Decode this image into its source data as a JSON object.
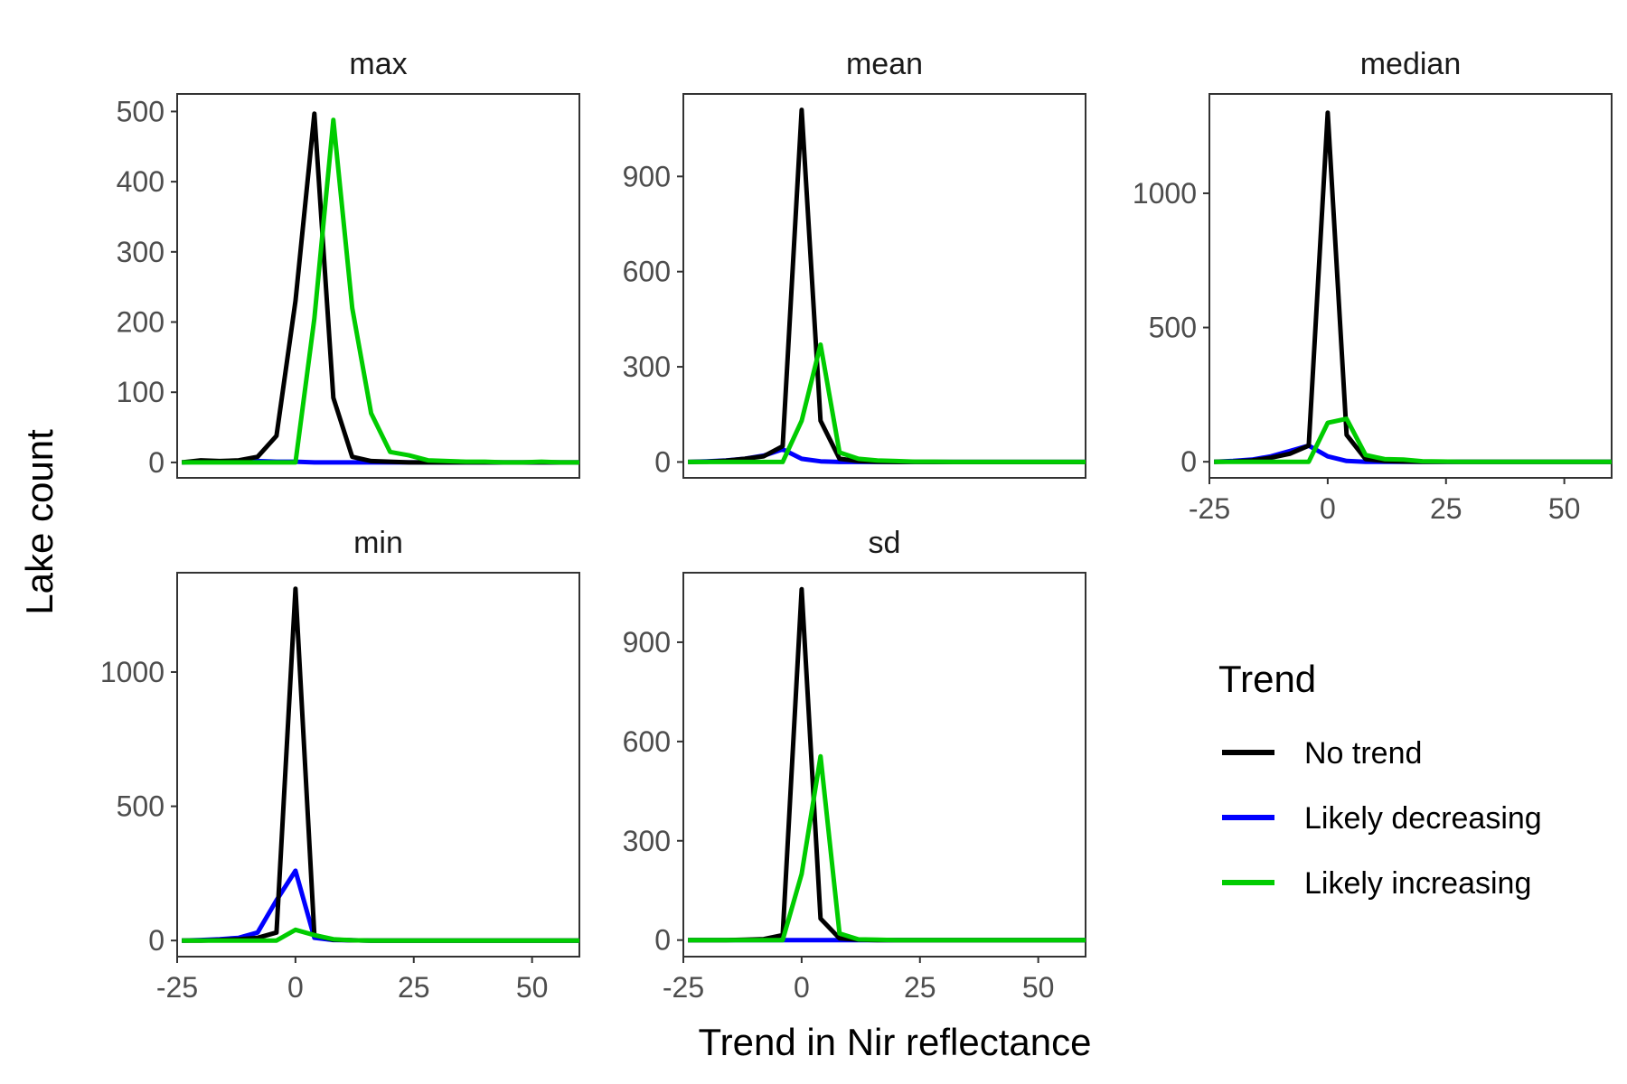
{
  "chart_data": {
    "type": "line",
    "ylabel": "Lake count",
    "xlabel": "Trend in Nir reflectance",
    "xlim": [
      -25,
      60
    ],
    "x_ticks": [
      -25,
      0,
      25,
      50
    ],
    "legend": {
      "title": "Trend",
      "placement": "right",
      "entries": [
        {
          "label": "No trend",
          "color": "#000000"
        },
        {
          "label": "Likely decreasing",
          "color": "#0000ff"
        },
        {
          "label": "Likely increasing",
          "color": "#00cc00"
        }
      ]
    },
    "x": [
      -24,
      -20,
      -16,
      -12,
      -8,
      -4,
      0,
      4,
      8,
      12,
      16,
      20,
      24,
      28,
      32,
      36,
      40,
      44,
      48,
      52,
      56,
      60
    ],
    "panels": [
      {
        "title": "max",
        "ylim": [
          -22,
          525
        ],
        "y_ticks": [
          0,
          100,
          200,
          300,
          400,
          500
        ],
        "series": [
          {
            "name": "No trend",
            "values": [
              0,
              3,
              2,
              3,
              8,
              38,
              230,
              497,
              92,
              8,
              2,
              1,
              0,
              0,
              0,
              0,
              0,
              0,
              0,
              0,
              0,
              0
            ]
          },
          {
            "name": "Likely decreasing",
            "values": [
              0,
              1,
              1,
              2,
              2,
              1,
              1,
              0,
              0,
              0,
              0,
              0,
              0,
              0,
              0,
              0,
              0,
              0,
              0,
              0,
              0,
              0
            ]
          },
          {
            "name": "Likely increasing",
            "values": [
              0,
              0,
              0,
              0,
              0,
              0,
              0,
              205,
              488,
              220,
              70,
              15,
              10,
              3,
              2,
              1,
              1,
              0,
              0,
              1,
              0,
              0
            ]
          }
        ]
      },
      {
        "title": "mean",
        "ylim": [
          -50,
          1160
        ],
        "y_ticks": [
          0,
          300,
          600,
          900
        ],
        "series": [
          {
            "name": "No trend",
            "values": [
              0,
              1,
              4,
              10,
              18,
              50,
              1110,
              130,
              10,
              3,
              1,
              0,
              0,
              0,
              0,
              0,
              0,
              0,
              0,
              0,
              0,
              0
            ]
          },
          {
            "name": "Likely decreasing",
            "values": [
              0,
              2,
              5,
              10,
              20,
              40,
              10,
              2,
              0,
              0,
              0,
              0,
              0,
              0,
              0,
              0,
              0,
              0,
              0,
              0,
              0,
              0
            ]
          },
          {
            "name": "Likely increasing",
            "values": [
              0,
              0,
              0,
              0,
              0,
              0,
              130,
              370,
              30,
              10,
              5,
              3,
              1,
              1,
              0,
              0,
              0,
              0,
              0,
              0,
              0,
              0
            ]
          }
        ]
      },
      {
        "title": "median",
        "ylim": [
          -60,
          1370
        ],
        "y_ticks": [
          0,
          500,
          1000
        ],
        "series": [
          {
            "name": "No trend",
            "values": [
              0,
              1,
              5,
              15,
              30,
              60,
              1300,
              100,
              10,
              3,
              1,
              0,
              0,
              0,
              0,
              0,
              0,
              0,
              0,
              0,
              0,
              0
            ]
          },
          {
            "name": "Likely decreasing",
            "values": [
              0,
              3,
              8,
              20,
              40,
              60,
              20,
              3,
              0,
              0,
              0,
              0,
              0,
              0,
              0,
              0,
              0,
              0,
              0,
              0,
              0,
              0
            ]
          },
          {
            "name": "Likely increasing",
            "values": [
              0,
              0,
              0,
              0,
              0,
              0,
              145,
              160,
              25,
              10,
              8,
              2,
              1,
              0,
              0,
              0,
              0,
              0,
              0,
              0,
              0,
              0
            ]
          }
        ]
      },
      {
        "title": "min",
        "ylim": [
          -60,
          1370
        ],
        "y_ticks": [
          0,
          500,
          1000
        ],
        "series": [
          {
            "name": "No trend",
            "values": [
              0,
              0,
              2,
              5,
              10,
              30,
              1310,
              20,
              3,
              1,
              0,
              0,
              0,
              0,
              0,
              0,
              0,
              0,
              0,
              0,
              0,
              0
            ]
          },
          {
            "name": "Likely decreasing",
            "values": [
              0,
              2,
              5,
              10,
              30,
              150,
              260,
              10,
              2,
              1,
              0,
              0,
              0,
              0,
              0,
              0,
              0,
              0,
              0,
              0,
              0,
              0
            ]
          },
          {
            "name": "Likely increasing",
            "values": [
              0,
              0,
              0,
              0,
              0,
              0,
              40,
              20,
              5,
              1,
              0,
              0,
              0,
              0,
              0,
              0,
              0,
              0,
              0,
              0,
              0,
              0
            ]
          }
        ]
      },
      {
        "title": "sd",
        "ylim": [
          -50,
          1110
        ],
        "y_ticks": [
          0,
          300,
          600,
          900
        ],
        "series": [
          {
            "name": "No trend",
            "values": [
              0,
              0,
              0,
              1,
              3,
              15,
              1060,
              65,
              5,
              1,
              0,
              0,
              0,
              0,
              0,
              0,
              0,
              0,
              0,
              0,
              0,
              0
            ]
          },
          {
            "name": "Likely decreasing",
            "values": [
              0,
              0,
              0,
              0,
              0,
              0,
              0,
              0,
              0,
              0,
              0,
              0,
              0,
              0,
              0,
              0,
              0,
              0,
              0,
              0,
              0,
              0
            ]
          },
          {
            "name": "Likely increasing",
            "values": [
              0,
              0,
              0,
              0,
              0,
              0,
              200,
              555,
              20,
              2,
              1,
              0,
              0,
              0,
              0,
              0,
              0,
              0,
              0,
              0,
              0,
              0
            ]
          }
        ]
      }
    ]
  }
}
